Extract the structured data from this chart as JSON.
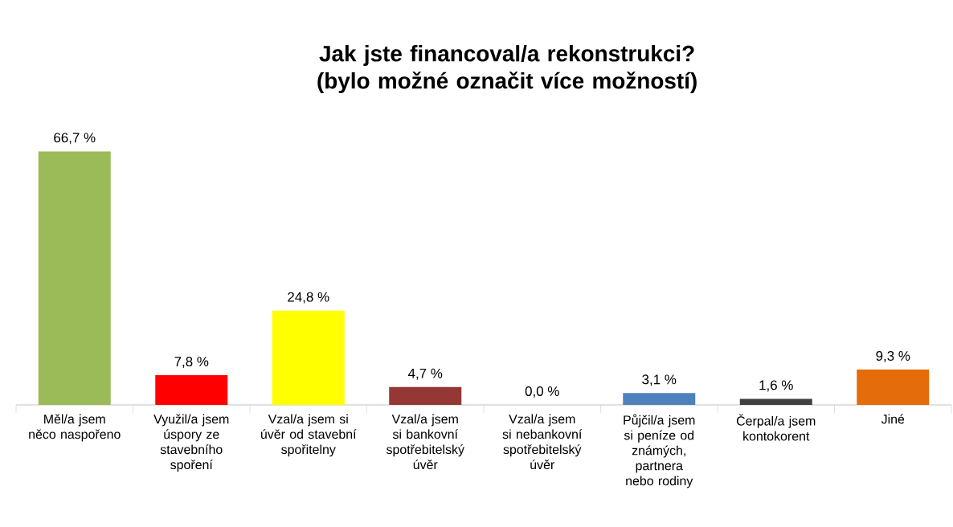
{
  "chart_data": {
    "type": "bar",
    "title": "Jak jste financoval/a rekonstrukci? (bylo možné označit více možností)",
    "categories": [
      "Měl/a jsem něco naspořeno",
      "Využil/a jsem úspory ze stavebního spoření",
      "Vzal/a jsem si úvěr od stavební spořitelny",
      "Vzal/a jsem si bankovní spotřebitelský úvěr",
      "Vzal/a jsem si nebankovní spotřebitelský úvěr",
      "Půjčil/a jsem si peníze od známých, partnera nebo rodiny",
      "Čerpal/a jsem kontokorent",
      "Jiné"
    ],
    "values": [
      66.7,
      7.8,
      24.8,
      4.7,
      0.0,
      3.1,
      1.6,
      9.3
    ],
    "value_labels": [
      "66,7 %",
      "7,8 %",
      "24,8 %",
      "4,7 %",
      "0,0 %",
      "3,1 %",
      "1,6 %",
      "9,3 %"
    ],
    "colors": [
      "#9bbb59",
      "#ff0000",
      "#ffff00",
      "#953735",
      "#7f7f7f",
      "#4f81bd",
      "#404040",
      "#e46c0a"
    ]
  }
}
